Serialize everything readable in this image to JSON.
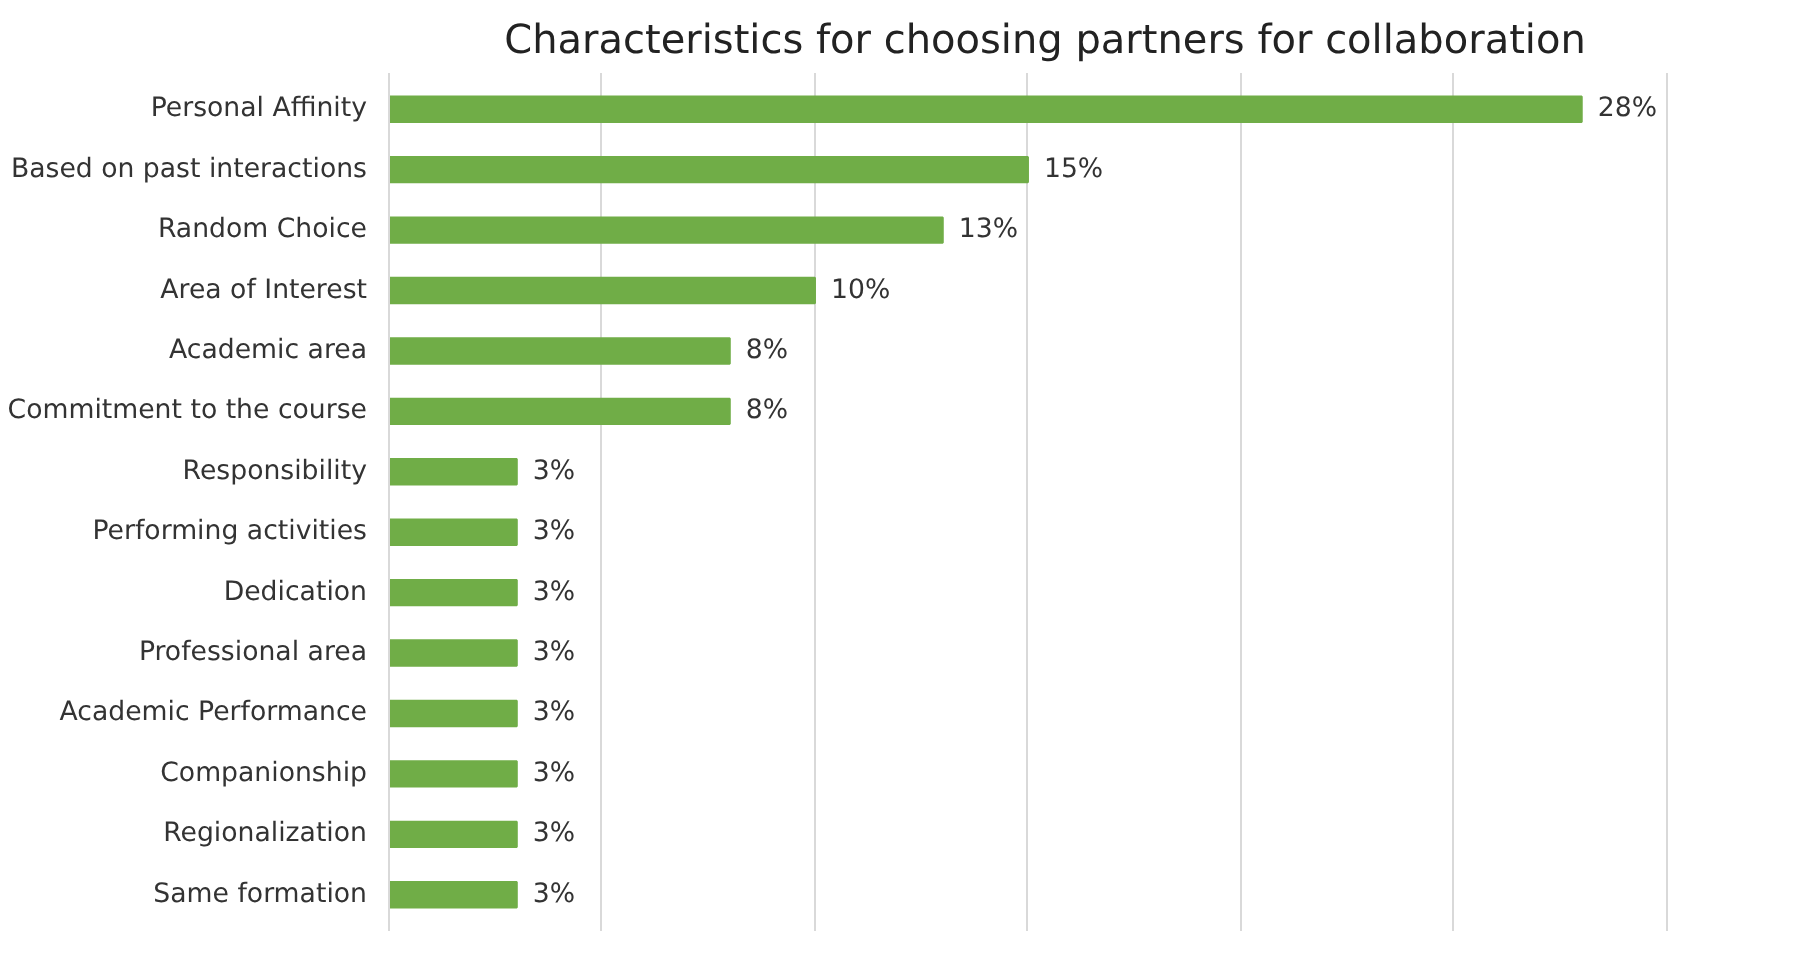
{
  "chart_data": {
    "type": "bar",
    "orientation": "horizontal",
    "title": "Characteristics for choosing partners for collaboration",
    "categories": [
      "Personal Affinity",
      "Based on past interactions",
      "Random Choice",
      "Area of Interest",
      "Academic area",
      "Commitment to the course",
      "Responsibility",
      "Performing activities",
      "Dedication",
      "Professional area",
      "Academic Performance",
      "Companionship",
      "Regionalization",
      "Same formation"
    ],
    "values": [
      28,
      15,
      13,
      10,
      8,
      8,
      3,
      3,
      3,
      3,
      3,
      3,
      3,
      3
    ],
    "value_labels": [
      "28%",
      "15%",
      "13%",
      "10%",
      "8%",
      "8%",
      "3%",
      "3%",
      "3%",
      "3%",
      "3%",
      "3%",
      "3%",
      "3%"
    ],
    "color": "#70ad47",
    "grid": "x",
    "tick_labels": "y"
  }
}
